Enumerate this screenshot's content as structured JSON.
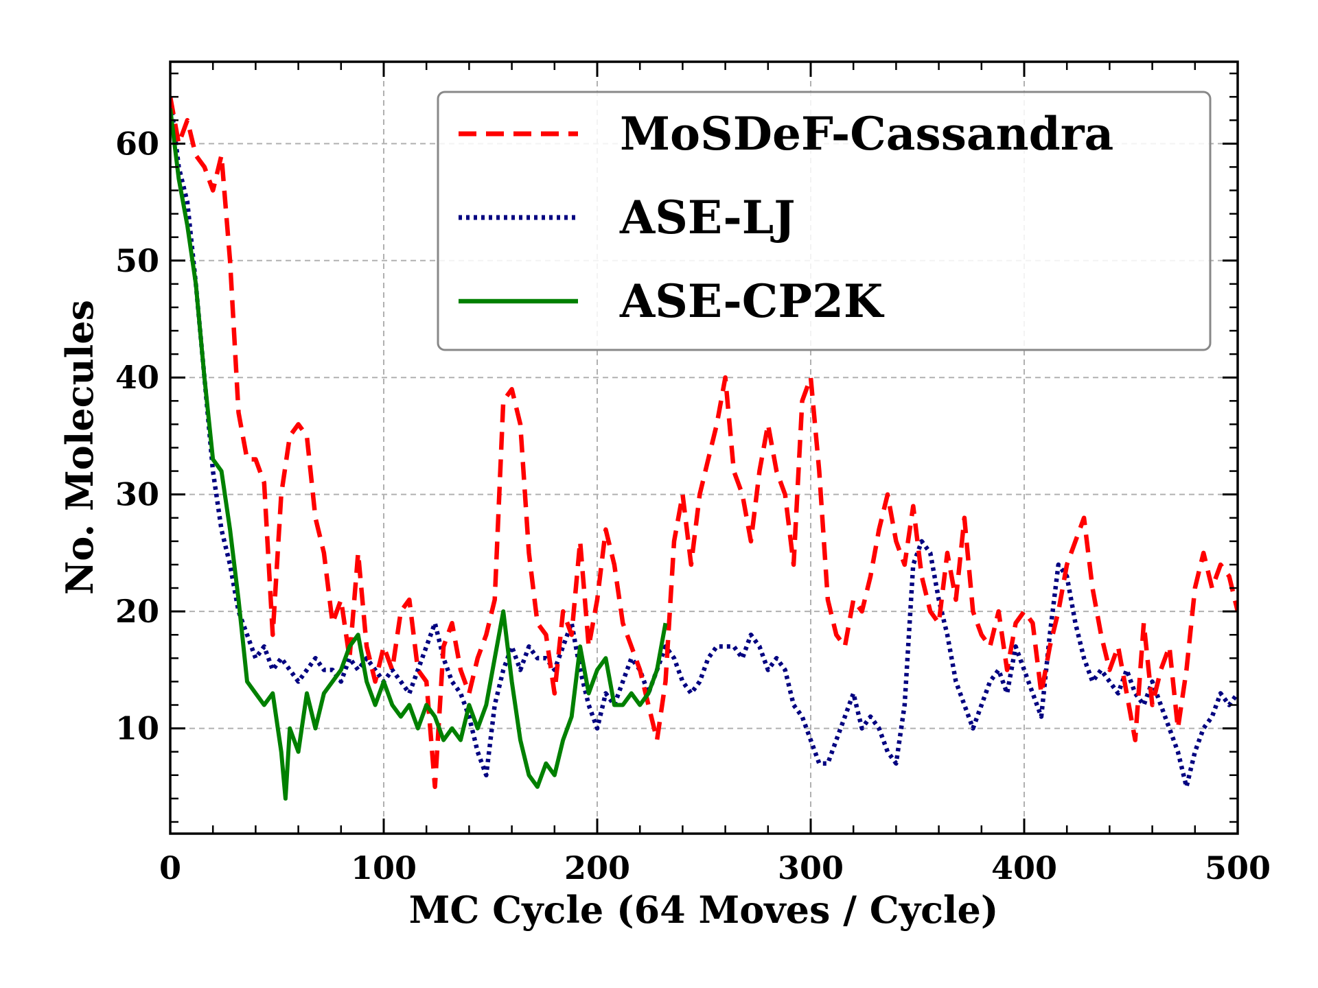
{
  "chart_data": {
    "type": "line",
    "xlabel": "MC Cycle (64 Moves / Cycle)",
    "ylabel": "No. Molecules",
    "xlim": [
      0,
      500
    ],
    "ylim": [
      1,
      67
    ],
    "xticks": [
      0,
      100,
      200,
      300,
      400,
      500
    ],
    "yticks": [
      10,
      20,
      30,
      40,
      50,
      60
    ],
    "grid": true,
    "legend_position": "top-right",
    "series": [
      {
        "name": "MoSDeF-Cassandra",
        "color": "#ff0000",
        "style": "dashed",
        "points": [
          [
            0,
            64
          ],
          [
            4,
            60
          ],
          [
            8,
            62
          ],
          [
            12,
            59
          ],
          [
            16,
            58
          ],
          [
            20,
            56
          ],
          [
            24,
            59
          ],
          [
            28,
            50
          ],
          [
            32,
            37
          ],
          [
            36,
            33
          ],
          [
            40,
            33
          ],
          [
            44,
            31
          ],
          [
            48,
            18
          ],
          [
            52,
            30
          ],
          [
            56,
            35
          ],
          [
            60,
            36
          ],
          [
            64,
            35
          ],
          [
            68,
            28
          ],
          [
            72,
            25
          ],
          [
            76,
            19
          ],
          [
            80,
            21
          ],
          [
            84,
            16
          ],
          [
            88,
            25
          ],
          [
            92,
            17
          ],
          [
            96,
            14
          ],
          [
            100,
            17
          ],
          [
            104,
            15
          ],
          [
            108,
            20
          ],
          [
            112,
            21
          ],
          [
            116,
            15
          ],
          [
            120,
            14
          ],
          [
            124,
            5
          ],
          [
            128,
            17
          ],
          [
            132,
            19
          ],
          [
            136,
            15
          ],
          [
            140,
            13
          ],
          [
            144,
            16
          ],
          [
            148,
            18
          ],
          [
            152,
            21
          ],
          [
            156,
            38
          ],
          [
            160,
            39
          ],
          [
            164,
            36
          ],
          [
            168,
            25
          ],
          [
            172,
            19
          ],
          [
            176,
            18
          ],
          [
            180,
            13
          ],
          [
            184,
            20
          ],
          [
            188,
            18
          ],
          [
            192,
            26
          ],
          [
            196,
            17
          ],
          [
            200,
            21
          ],
          [
            204,
            27
          ],
          [
            208,
            24
          ],
          [
            212,
            19
          ],
          [
            216,
            17
          ],
          [
            220,
            15
          ],
          [
            224,
            12
          ],
          [
            228,
            9
          ],
          [
            232,
            14
          ],
          [
            236,
            26
          ],
          [
            240,
            30
          ],
          [
            244,
            24
          ],
          [
            248,
            30
          ],
          [
            252,
            33
          ],
          [
            256,
            36
          ],
          [
            260,
            40
          ],
          [
            264,
            32
          ],
          [
            268,
            30
          ],
          [
            272,
            26
          ],
          [
            276,
            32
          ],
          [
            280,
            36
          ],
          [
            284,
            32
          ],
          [
            288,
            30
          ],
          [
            292,
            24
          ],
          [
            296,
            38
          ],
          [
            300,
            40
          ],
          [
            304,
            32
          ],
          [
            308,
            21
          ],
          [
            312,
            18
          ],
          [
            316,
            17
          ],
          [
            320,
            21
          ],
          [
            324,
            20
          ],
          [
            328,
            23
          ],
          [
            332,
            27
          ],
          [
            336,
            30
          ],
          [
            340,
            26
          ],
          [
            344,
            24
          ],
          [
            348,
            29
          ],
          [
            352,
            23
          ],
          [
            356,
            20
          ],
          [
            360,
            19
          ],
          [
            364,
            25
          ],
          [
            368,
            21
          ],
          [
            372,
            28
          ],
          [
            376,
            20
          ],
          [
            380,
            18
          ],
          [
            384,
            17
          ],
          [
            388,
            20
          ],
          [
            392,
            15
          ],
          [
            396,
            19
          ],
          [
            400,
            20
          ],
          [
            404,
            19
          ],
          [
            408,
            13
          ],
          [
            412,
            17
          ],
          [
            416,
            20
          ],
          [
            420,
            24
          ],
          [
            424,
            26
          ],
          [
            428,
            28
          ],
          [
            432,
            22
          ],
          [
            436,
            18
          ],
          [
            440,
            15
          ],
          [
            444,
            17
          ],
          [
            448,
            13
          ],
          [
            452,
            9
          ],
          [
            456,
            19
          ],
          [
            460,
            12
          ],
          [
            464,
            15
          ],
          [
            468,
            17
          ],
          [
            472,
            10
          ],
          [
            476,
            15
          ],
          [
            480,
            22
          ],
          [
            484,
            25
          ],
          [
            488,
            22
          ],
          [
            492,
            24
          ],
          [
            496,
            23
          ],
          [
            500,
            20
          ]
        ]
      },
      {
        "name": "ASE-LJ",
        "color": "#000080",
        "style": "dotted",
        "points": [
          [
            0,
            64
          ],
          [
            4,
            58
          ],
          [
            8,
            55
          ],
          [
            12,
            48
          ],
          [
            16,
            40
          ],
          [
            20,
            32
          ],
          [
            24,
            27
          ],
          [
            28,
            24
          ],
          [
            32,
            20
          ],
          [
            36,
            18
          ],
          [
            40,
            16
          ],
          [
            44,
            17
          ],
          [
            48,
            15
          ],
          [
            52,
            16
          ],
          [
            56,
            15
          ],
          [
            60,
            14
          ],
          [
            64,
            15
          ],
          [
            68,
            16
          ],
          [
            72,
            15
          ],
          [
            76,
            15
          ],
          [
            80,
            14
          ],
          [
            84,
            16
          ],
          [
            88,
            15
          ],
          [
            92,
            16
          ],
          [
            96,
            15
          ],
          [
            100,
            14
          ],
          [
            104,
            15
          ],
          [
            108,
            14
          ],
          [
            112,
            13
          ],
          [
            116,
            15
          ],
          [
            120,
            17
          ],
          [
            124,
            19
          ],
          [
            128,
            16
          ],
          [
            132,
            14
          ],
          [
            136,
            13
          ],
          [
            140,
            11
          ],
          [
            144,
            8
          ],
          [
            148,
            6
          ],
          [
            152,
            12
          ],
          [
            156,
            15
          ],
          [
            160,
            17
          ],
          [
            164,
            15
          ],
          [
            168,
            17
          ],
          [
            172,
            16
          ],
          [
            176,
            16
          ],
          [
            180,
            15
          ],
          [
            184,
            17
          ],
          [
            188,
            19
          ],
          [
            192,
            15
          ],
          [
            196,
            12
          ],
          [
            200,
            10
          ],
          [
            204,
            13
          ],
          [
            208,
            12
          ],
          [
            212,
            14
          ],
          [
            216,
            16
          ],
          [
            220,
            15
          ],
          [
            224,
            13
          ],
          [
            228,
            15
          ],
          [
            232,
            17
          ],
          [
            236,
            16
          ],
          [
            240,
            14
          ],
          [
            244,
            13
          ],
          [
            248,
            14
          ],
          [
            252,
            16
          ],
          [
            256,
            17
          ],
          [
            260,
            17
          ],
          [
            264,
            17
          ],
          [
            268,
            16
          ],
          [
            272,
            18
          ],
          [
            276,
            17
          ],
          [
            280,
            15
          ],
          [
            284,
            16
          ],
          [
            288,
            15
          ],
          [
            292,
            12
          ],
          [
            296,
            11
          ],
          [
            300,
            9
          ],
          [
            304,
            7
          ],
          [
            308,
            7
          ],
          [
            312,
            9
          ],
          [
            316,
            11
          ],
          [
            320,
            13
          ],
          [
            324,
            10
          ],
          [
            328,
            11
          ],
          [
            332,
            10
          ],
          [
            336,
            8
          ],
          [
            340,
            7
          ],
          [
            344,
            12
          ],
          [
            348,
            24
          ],
          [
            352,
            26
          ],
          [
            356,
            25
          ],
          [
            360,
            21
          ],
          [
            364,
            18
          ],
          [
            368,
            14
          ],
          [
            372,
            12
          ],
          [
            376,
            10
          ],
          [
            380,
            12
          ],
          [
            384,
            14
          ],
          [
            388,
            15
          ],
          [
            392,
            13
          ],
          [
            396,
            17
          ],
          [
            400,
            15
          ],
          [
            404,
            13
          ],
          [
            408,
            11
          ],
          [
            412,
            18
          ],
          [
            416,
            24
          ],
          [
            420,
            23
          ],
          [
            424,
            19
          ],
          [
            428,
            16
          ],
          [
            432,
            14
          ],
          [
            436,
            15
          ],
          [
            440,
            14
          ],
          [
            444,
            13
          ],
          [
            448,
            15
          ],
          [
            452,
            13
          ],
          [
            456,
            12
          ],
          [
            460,
            14
          ],
          [
            464,
            12
          ],
          [
            468,
            10
          ],
          [
            472,
            8
          ],
          [
            476,
            5
          ],
          [
            480,
            8
          ],
          [
            484,
            10
          ],
          [
            488,
            11
          ],
          [
            492,
            13
          ],
          [
            496,
            12
          ],
          [
            500,
            13
          ]
        ]
      },
      {
        "name": "ASE-CP2K",
        "color": "#008000",
        "style": "solid",
        "points": [
          [
            0,
            63
          ],
          [
            4,
            57
          ],
          [
            8,
            53
          ],
          [
            12,
            48
          ],
          [
            16,
            40
          ],
          [
            20,
            33
          ],
          [
            24,
            32
          ],
          [
            28,
            27
          ],
          [
            32,
            21
          ],
          [
            36,
            14
          ],
          [
            40,
            13
          ],
          [
            44,
            12
          ],
          [
            48,
            13
          ],
          [
            52,
            8
          ],
          [
            54,
            4
          ],
          [
            56,
            10
          ],
          [
            60,
            8
          ],
          [
            64,
            13
          ],
          [
            68,
            10
          ],
          [
            72,
            13
          ],
          [
            76,
            14
          ],
          [
            80,
            15
          ],
          [
            84,
            17
          ],
          [
            88,
            18
          ],
          [
            92,
            14
          ],
          [
            96,
            12
          ],
          [
            100,
            14
          ],
          [
            104,
            12
          ],
          [
            108,
            11
          ],
          [
            112,
            12
          ],
          [
            116,
            10
          ],
          [
            120,
            12
          ],
          [
            124,
            11
          ],
          [
            128,
            9
          ],
          [
            132,
            10
          ],
          [
            136,
            9
          ],
          [
            140,
            12
          ],
          [
            144,
            10
          ],
          [
            148,
            12
          ],
          [
            152,
            16
          ],
          [
            156,
            20
          ],
          [
            160,
            14
          ],
          [
            164,
            9
          ],
          [
            168,
            6
          ],
          [
            172,
            5
          ],
          [
            176,
            7
          ],
          [
            180,
            6
          ],
          [
            184,
            9
          ],
          [
            188,
            11
          ],
          [
            192,
            17
          ],
          [
            196,
            13
          ],
          [
            200,
            15
          ],
          [
            204,
            16
          ],
          [
            208,
            12
          ],
          [
            212,
            12
          ],
          [
            216,
            13
          ],
          [
            220,
            12
          ],
          [
            224,
            13
          ],
          [
            228,
            15
          ],
          [
            232,
            19
          ]
        ]
      }
    ]
  }
}
